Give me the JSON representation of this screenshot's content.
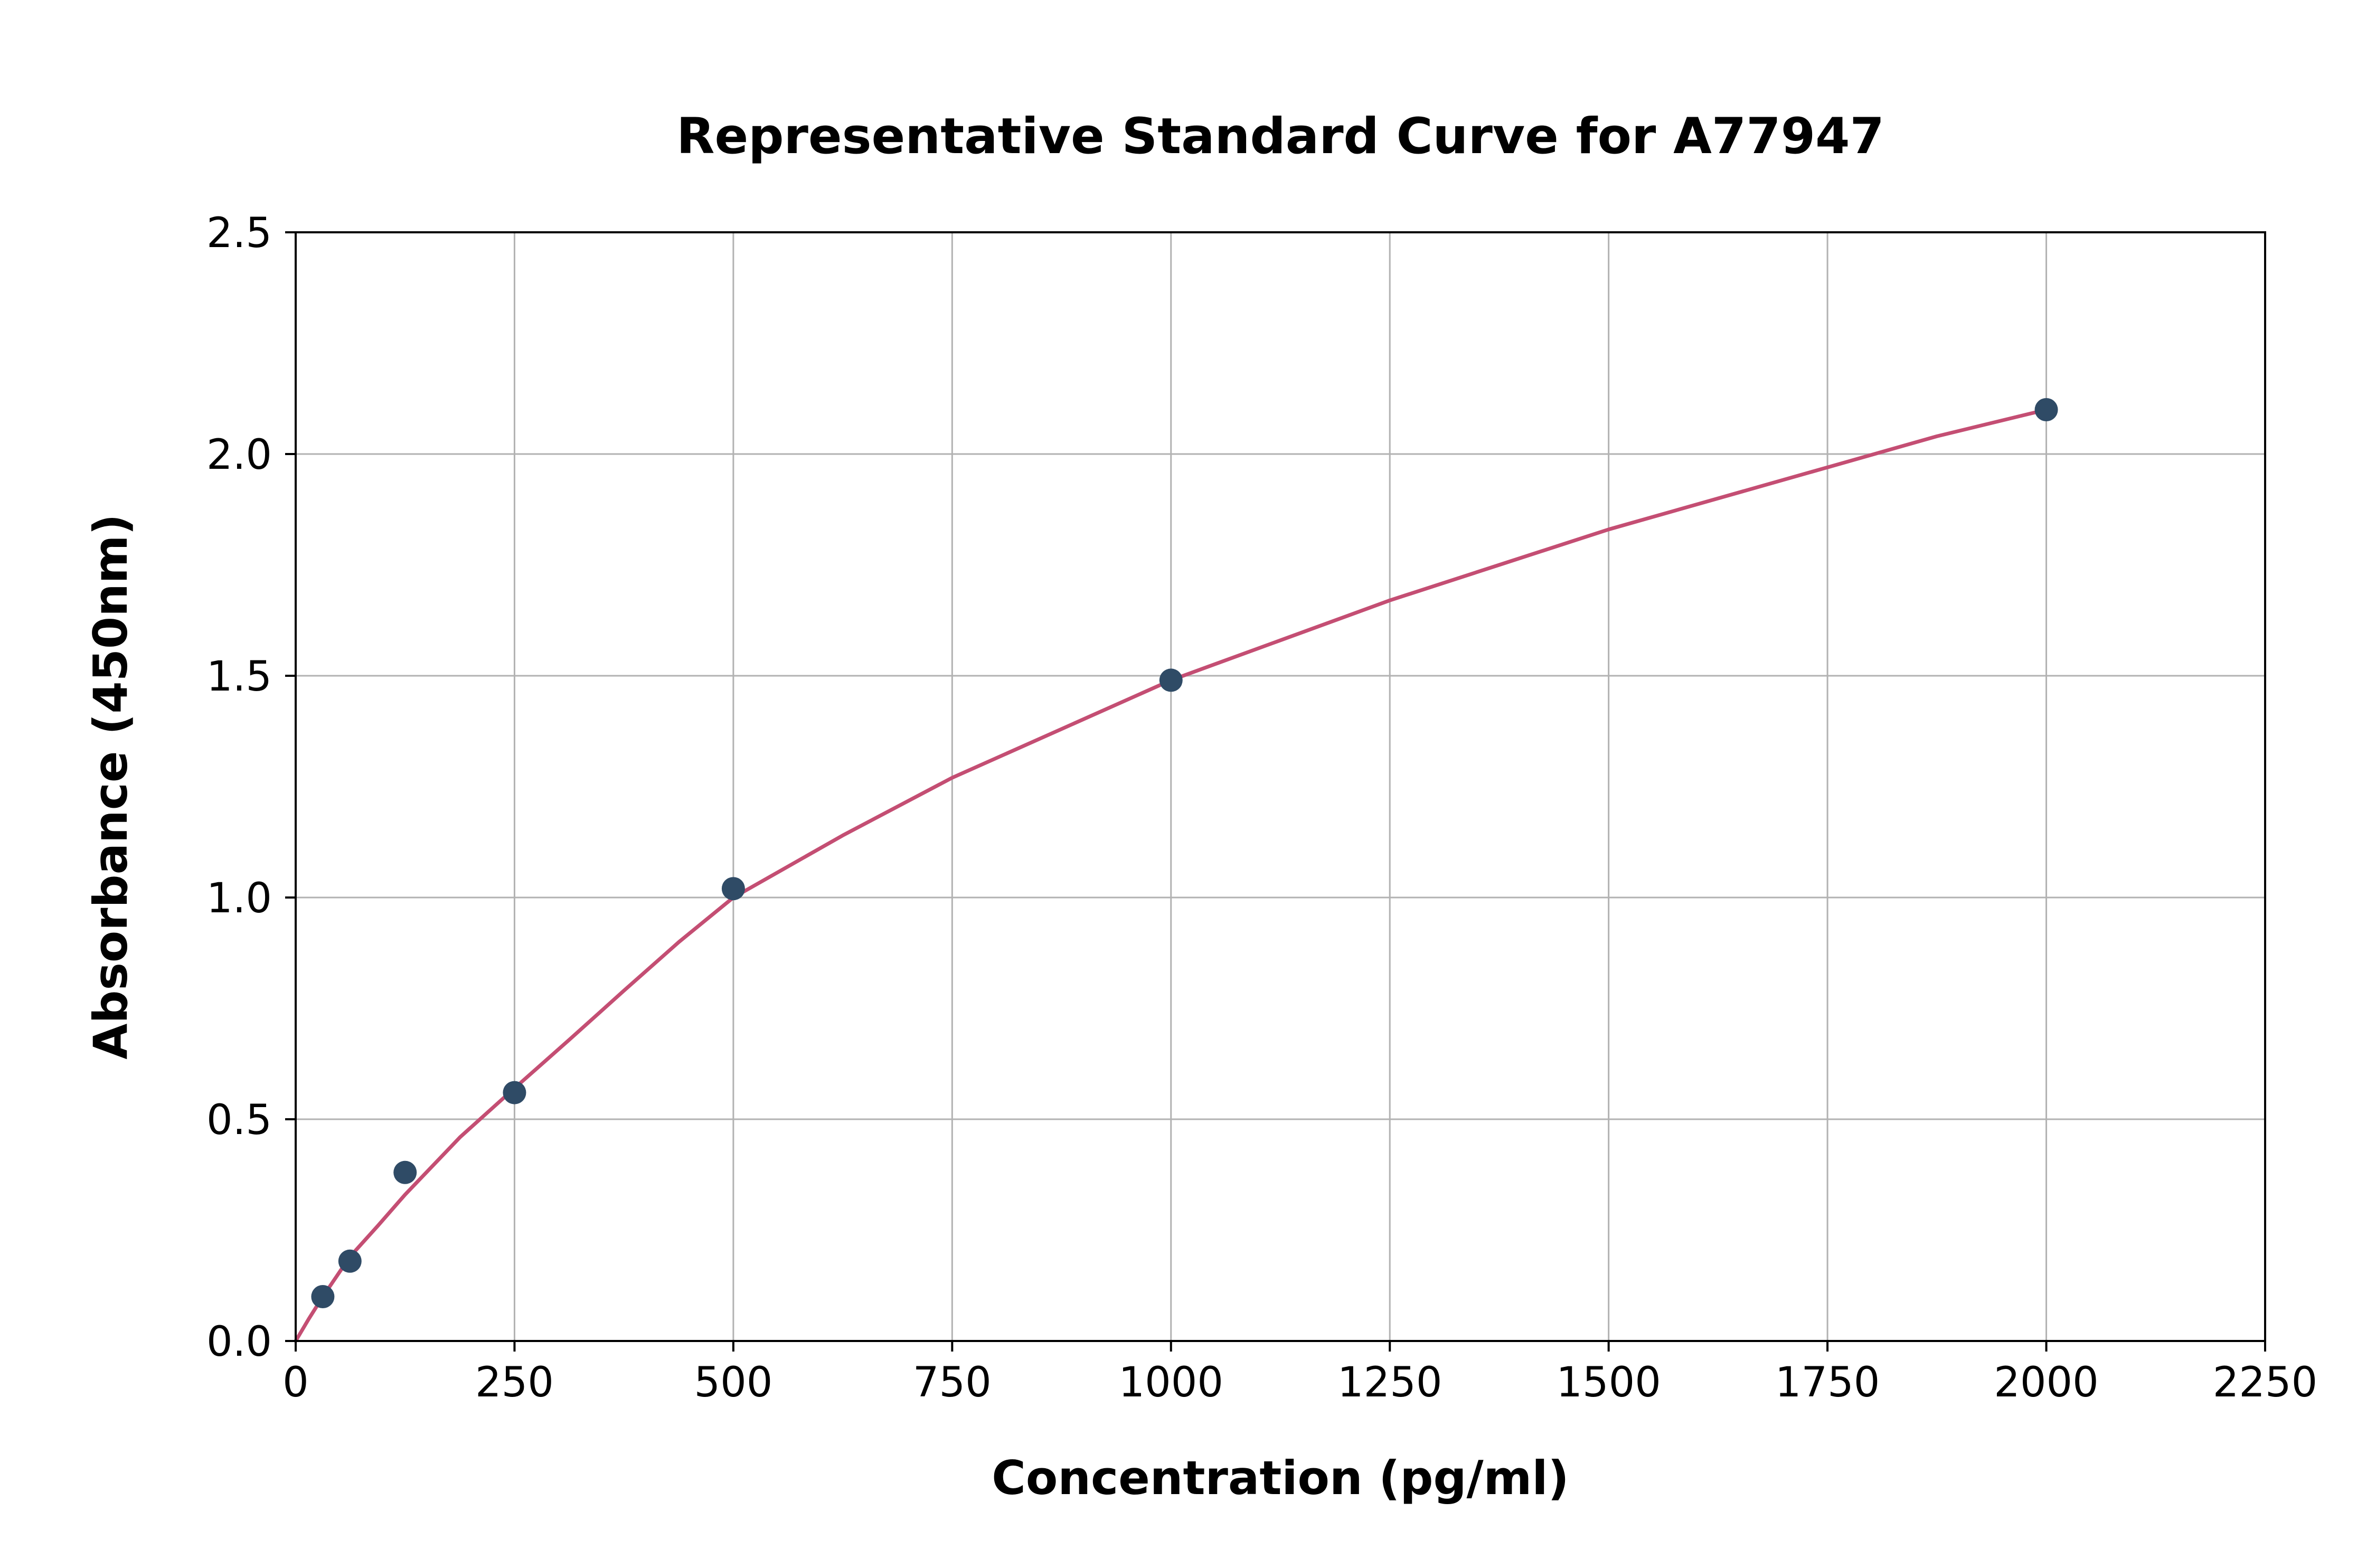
{
  "chart_data": {
    "type": "scatter",
    "title": "Representative Standard Curve for A77947",
    "xlabel": "Concentration (pg/ml)",
    "ylabel": "Absorbance (450nm)",
    "xlim": [
      0,
      2250
    ],
    "ylim": [
      0,
      2.5
    ],
    "x_ticks": [
      0,
      250,
      500,
      750,
      1000,
      1250,
      1500,
      1750,
      2000,
      2250
    ],
    "x_tick_labels": [
      "0",
      "250",
      "500",
      "750",
      "1000",
      "1250",
      "1500",
      "1750",
      "2000",
      "2250"
    ],
    "y_ticks": [
      0.0,
      0.5,
      1.0,
      1.5,
      2.0,
      2.5
    ],
    "y_tick_labels": [
      "0.0",
      "0.5",
      "1.0",
      "1.5",
      "2.0",
      "2.5"
    ],
    "grid": true,
    "legend": "none",
    "points": {
      "x": [
        31,
        62,
        125,
        250,
        500,
        1000,
        2000
      ],
      "y": [
        0.1,
        0.18,
        0.38,
        0.56,
        1.02,
        1.49,
        2.1
      ]
    },
    "fit_curve": {
      "x": [
        0,
        15,
        31,
        62,
        94,
        125,
        188,
        250,
        313,
        375,
        438,
        500,
        625,
        750,
        875,
        1000,
        1125,
        1250,
        1375,
        1500,
        1625,
        1750,
        1875,
        2000
      ],
      "y": [
        0.0,
        0.05,
        0.1,
        0.19,
        0.26,
        0.33,
        0.46,
        0.57,
        0.68,
        0.79,
        0.9,
        1.0,
        1.14,
        1.27,
        1.38,
        1.49,
        1.58,
        1.67,
        1.75,
        1.83,
        1.9,
        1.97,
        2.04,
        2.1
      ]
    },
    "colors": {
      "point": "#2f4b66",
      "curve": "#c44e73",
      "grid": "#b2b2b2",
      "axis": "#000000",
      "background": "#ffffff"
    }
  }
}
